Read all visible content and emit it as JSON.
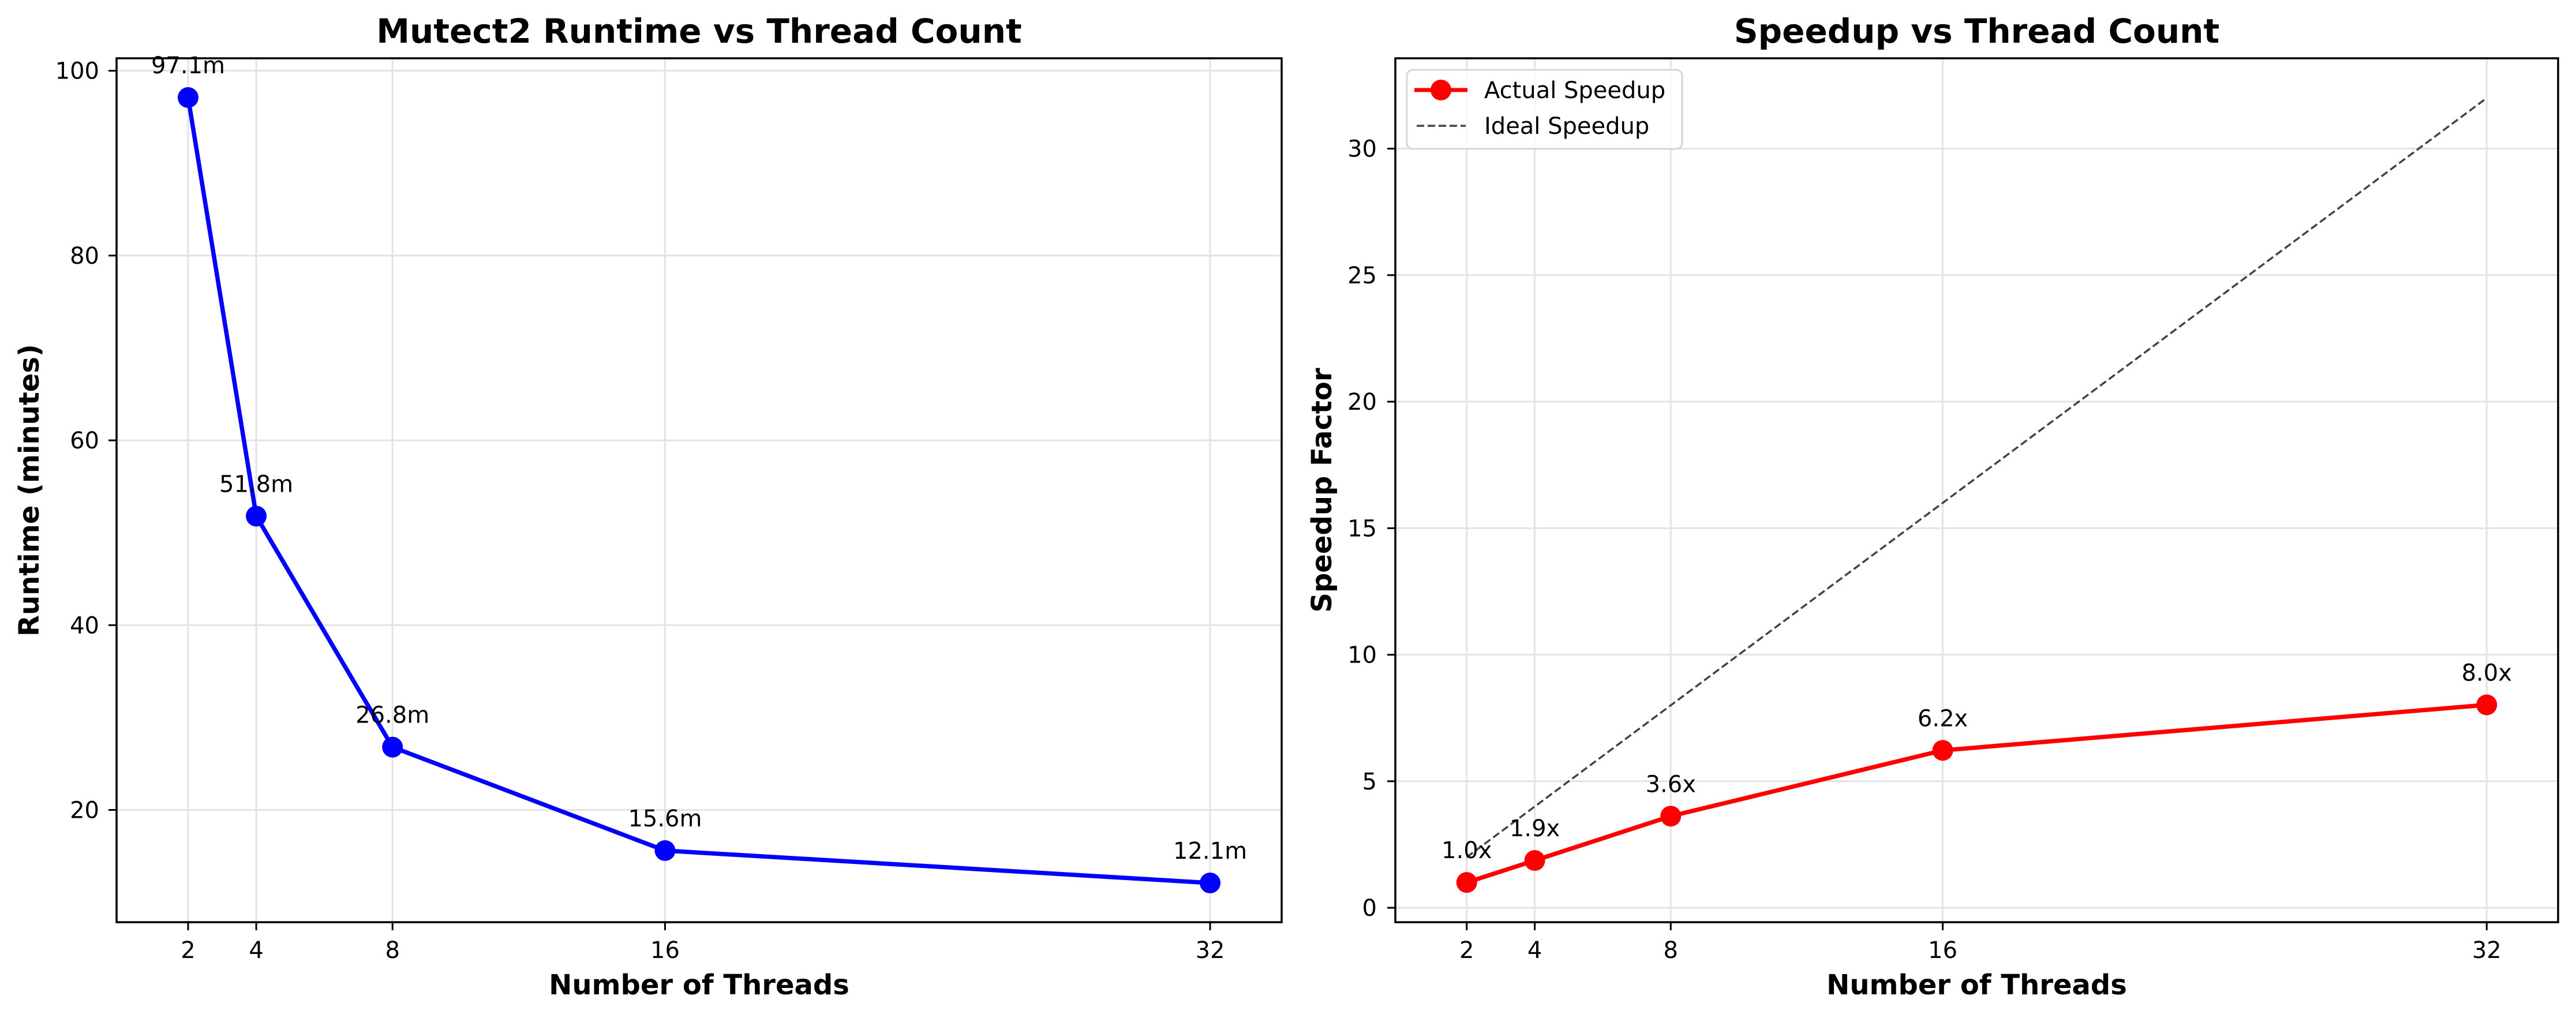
{
  "chart_data": [
    {
      "type": "line",
      "title": "Mutect2 Runtime vs Thread Count",
      "xlabel": "Number of Threads",
      "ylabel": "Runtime (minutes)",
      "x": [
        2,
        4,
        8,
        16,
        32
      ],
      "xticks": [
        2,
        4,
        8,
        16,
        32
      ],
      "xtick_labels": [
        "2",
        "4",
        "8",
        "16",
        "32"
      ],
      "xlim": [
        -0.1,
        34.1
      ],
      "yticks": [
        20,
        40,
        60,
        80,
        100
      ],
      "ytick_labels": [
        "20",
        "40",
        "60",
        "80",
        "100"
      ],
      "ylim": [
        7.85,
        101.35
      ],
      "grid": true,
      "series": [
        {
          "name": "Runtime",
          "values": [
            97.1,
            51.8,
            26.8,
            15.6,
            12.1
          ],
          "labels": [
            "97.1m",
            "51.8m",
            "26.8m",
            "15.6m",
            "12.1m"
          ],
          "color": "#0000ff",
          "marker": "circle",
          "linestyle": "solid"
        }
      ],
      "legend": null
    },
    {
      "type": "line",
      "title": "Speedup vs Thread Count",
      "xlabel": "Number of Threads",
      "ylabel": "Speedup Factor",
      "x": [
        2,
        4,
        8,
        16,
        32
      ],
      "xticks": [
        2,
        4,
        8,
        16,
        32
      ],
      "xtick_labels": [
        "2",
        "4",
        "8",
        "16",
        "32"
      ],
      "xlim": [
        -0.1,
        34.1
      ],
      "yticks": [
        0,
        5,
        10,
        15,
        20,
        25,
        30
      ],
      "ytick_labels": [
        "0",
        "5",
        "10",
        "15",
        "20",
        "25",
        "30"
      ],
      "ylim": [
        -0.57,
        33.57
      ],
      "grid": true,
      "series": [
        {
          "name": "Actual Speedup",
          "values": [
            1.0,
            1.87,
            3.62,
            6.22,
            8.02
          ],
          "labels": [
            "1.0x",
            "1.9x",
            "3.6x",
            "6.2x",
            "8.0x"
          ],
          "color": "#ff0000",
          "marker": "circle",
          "linestyle": "solid"
        },
        {
          "name": "Ideal Speedup",
          "x": [
            2,
            32
          ],
          "values": [
            2,
            32
          ],
          "color": "#444444",
          "marker": "none",
          "linestyle": "dashed"
        }
      ],
      "legend": {
        "position": "upper-left",
        "entries": [
          "Actual Speedup",
          "Ideal Speedup"
        ]
      }
    }
  ]
}
